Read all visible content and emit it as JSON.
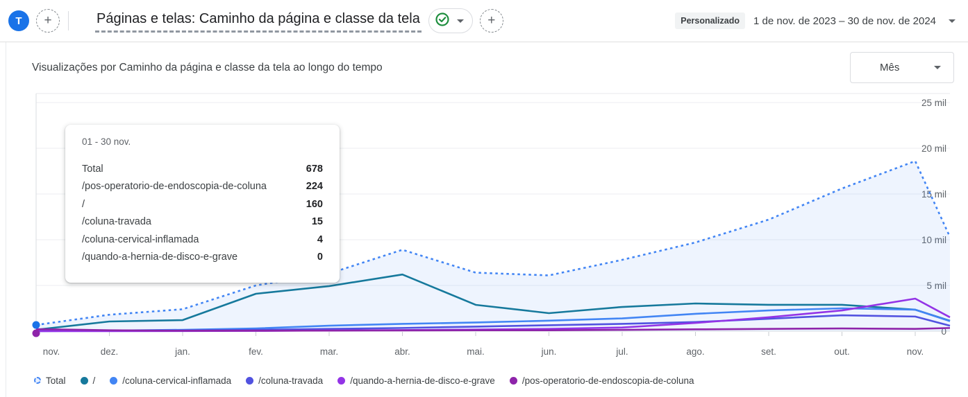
{
  "header": {
    "avatar_initial": "T",
    "add_tab_label": "+",
    "title": "Páginas e telas: Caminho da página e classe da tela",
    "add_chart_label": "+",
    "date_preset_badge": "Personalizado",
    "date_range": "1 de nov. de 2023 – 30 de nov. de 2024"
  },
  "toolbar": {
    "chart_title": "Visualizações por Caminho da página e classe da tela ao longo do tempo",
    "granularity_value": "Mês"
  },
  "tooltip": {
    "date_label": "01 - 30 nov.",
    "rows": [
      {
        "label": "Total",
        "value": "678"
      },
      {
        "label": "/pos-operatorio-de-endoscopia-de-coluna",
        "value": "224"
      },
      {
        "label": "/",
        "value": "160"
      },
      {
        "label": "/coluna-travada",
        "value": "15"
      },
      {
        "label": "/coluna-cervical-inflamada",
        "value": "4"
      },
      {
        "label": "/quando-a-hernia-de-disco-e-grave",
        "value": "0"
      }
    ]
  },
  "chart_data": {
    "type": "line",
    "title": "Visualizações por Caminho da página e classe da tela ao longo do tempo",
    "x": [
      "nov.",
      "dez.",
      "jan.",
      "fev.",
      "mar.",
      "abr.",
      "mai.",
      "jun.",
      "jul.",
      "ago.",
      "set.",
      "out.",
      "nov."
    ],
    "y_tick_labels": [
      "0",
      "5 mil",
      "10 mil",
      "15 mil",
      "20 mil",
      "25 mil"
    ],
    "y_ticks": [
      0,
      5000,
      10000,
      15000,
      20000,
      25000
    ],
    "ylim": [
      0,
      26000
    ],
    "grid": "horizontal",
    "legend_position": "bottom",
    "note": "partial_end is the value where each line is cut at the right edge (incomplete last month)",
    "series": [
      {
        "name": "Total",
        "color": "#4285f4",
        "style": "dotted",
        "area_fill": "rgba(66,133,244,0.09)",
        "values": [
          678,
          1800,
          2400,
          5000,
          6300,
          8900,
          6400,
          6100,
          7800,
          9700,
          12200,
          15600,
          18600
        ],
        "partial_end": 10300
      },
      {
        "name": "/",
        "color": "#16799c",
        "style": "solid",
        "values": [
          160,
          1060,
          1210,
          4090,
          4930,
          6200,
          2880,
          1970,
          2650,
          3030,
          2880,
          2880,
          2350
        ],
        "partial_end": 1140
      },
      {
        "name": "/coluna-cervical-inflamada",
        "color": "#4285f4",
        "style": "solid",
        "values": [
          4,
          60,
          150,
          300,
          600,
          800,
          950,
          1150,
          1400,
          1900,
          2270,
          2500,
          2350
        ],
        "partial_end": 1100
      },
      {
        "name": "/coluna-travada",
        "color": "#5152e0",
        "style": "solid",
        "values": [
          15,
          30,
          80,
          150,
          250,
          350,
          500,
          650,
          800,
          1000,
          1360,
          1740,
          1600
        ],
        "partial_end": 600
      },
      {
        "name": "/quando-a-hernia-de-disco-e-grave",
        "color": "#9334e6",
        "style": "solid",
        "values": [
          0,
          0,
          10,
          30,
          80,
          120,
          180,
          250,
          400,
          900,
          1520,
          2270,
          3560
        ],
        "partial_end": 1520
      },
      {
        "name": "/pos-operatorio-de-endoscopia-de-coluna",
        "color": "#8e24aa",
        "style": "solid",
        "values": [
          224,
          100,
          50,
          50,
          60,
          80,
          100,
          100,
          150,
          200,
          250,
          300,
          250
        ],
        "partial_end": 350
      }
    ],
    "hover_point": {
      "month_index": 0,
      "dot_colors": [
        "#1a73e8",
        "#8e24aa"
      ]
    }
  },
  "legend": {
    "items": [
      {
        "label": "Total",
        "color": "#4285f4",
        "marker": "dashed-ring"
      },
      {
        "label": "/",
        "color": "#16799c",
        "marker": "dot"
      },
      {
        "label": "/coluna-cervical-inflamada",
        "color": "#4285f4",
        "marker": "dot"
      },
      {
        "label": "/coluna-travada",
        "color": "#5152e0",
        "marker": "dot"
      },
      {
        "label": "/quando-a-hernia-de-disco-e-grave",
        "color": "#9334e6",
        "marker": "dot"
      },
      {
        "label": "/pos-operatorio-de-endoscopia-de-coluna",
        "color": "#8e24aa",
        "marker": "dot"
      }
    ]
  }
}
